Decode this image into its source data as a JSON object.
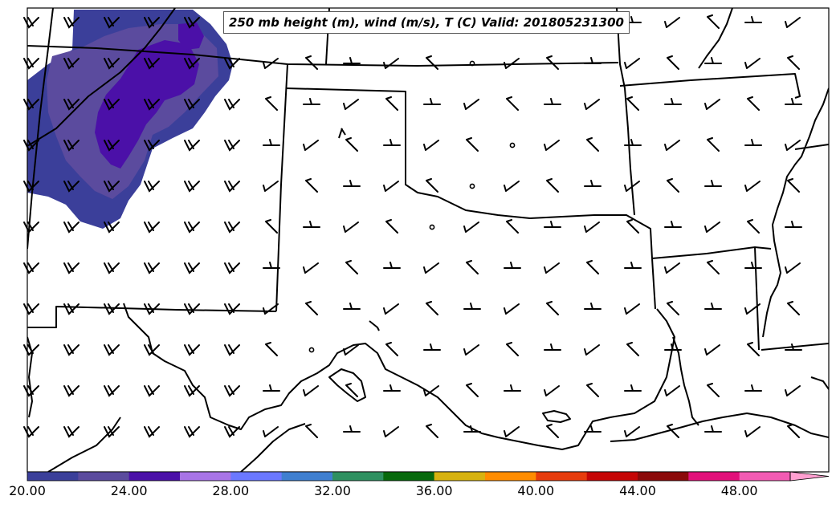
{
  "title": "250 mb height (m), wind (m/s), T (C) Valid: 201805231300",
  "colorbar": {
    "labels": [
      "20.00",
      "24.00",
      "28.00",
      "32.00",
      "36.00",
      "40.00",
      "44.00",
      "48.00"
    ],
    "colors": [
      "#3b3f9a",
      "#5b4b9e",
      "#4b10a8",
      "#a874e6",
      "#6b78ff",
      "#3f7fd0",
      "#2e9060",
      "#07690c",
      "#d7b20f",
      "#ff8c00",
      "#e73c0c",
      "#c50606",
      "#8b0a0a",
      "#e2107a",
      "#f25bb3"
    ],
    "extend_color": "#ff9fd0"
  },
  "colors": {
    "temp_deep": "#4b10a8",
    "temp_mid": "#5b4b9e",
    "temp_light": "#3b3f9a",
    "border": "#000000"
  },
  "legend_note": ""
}
